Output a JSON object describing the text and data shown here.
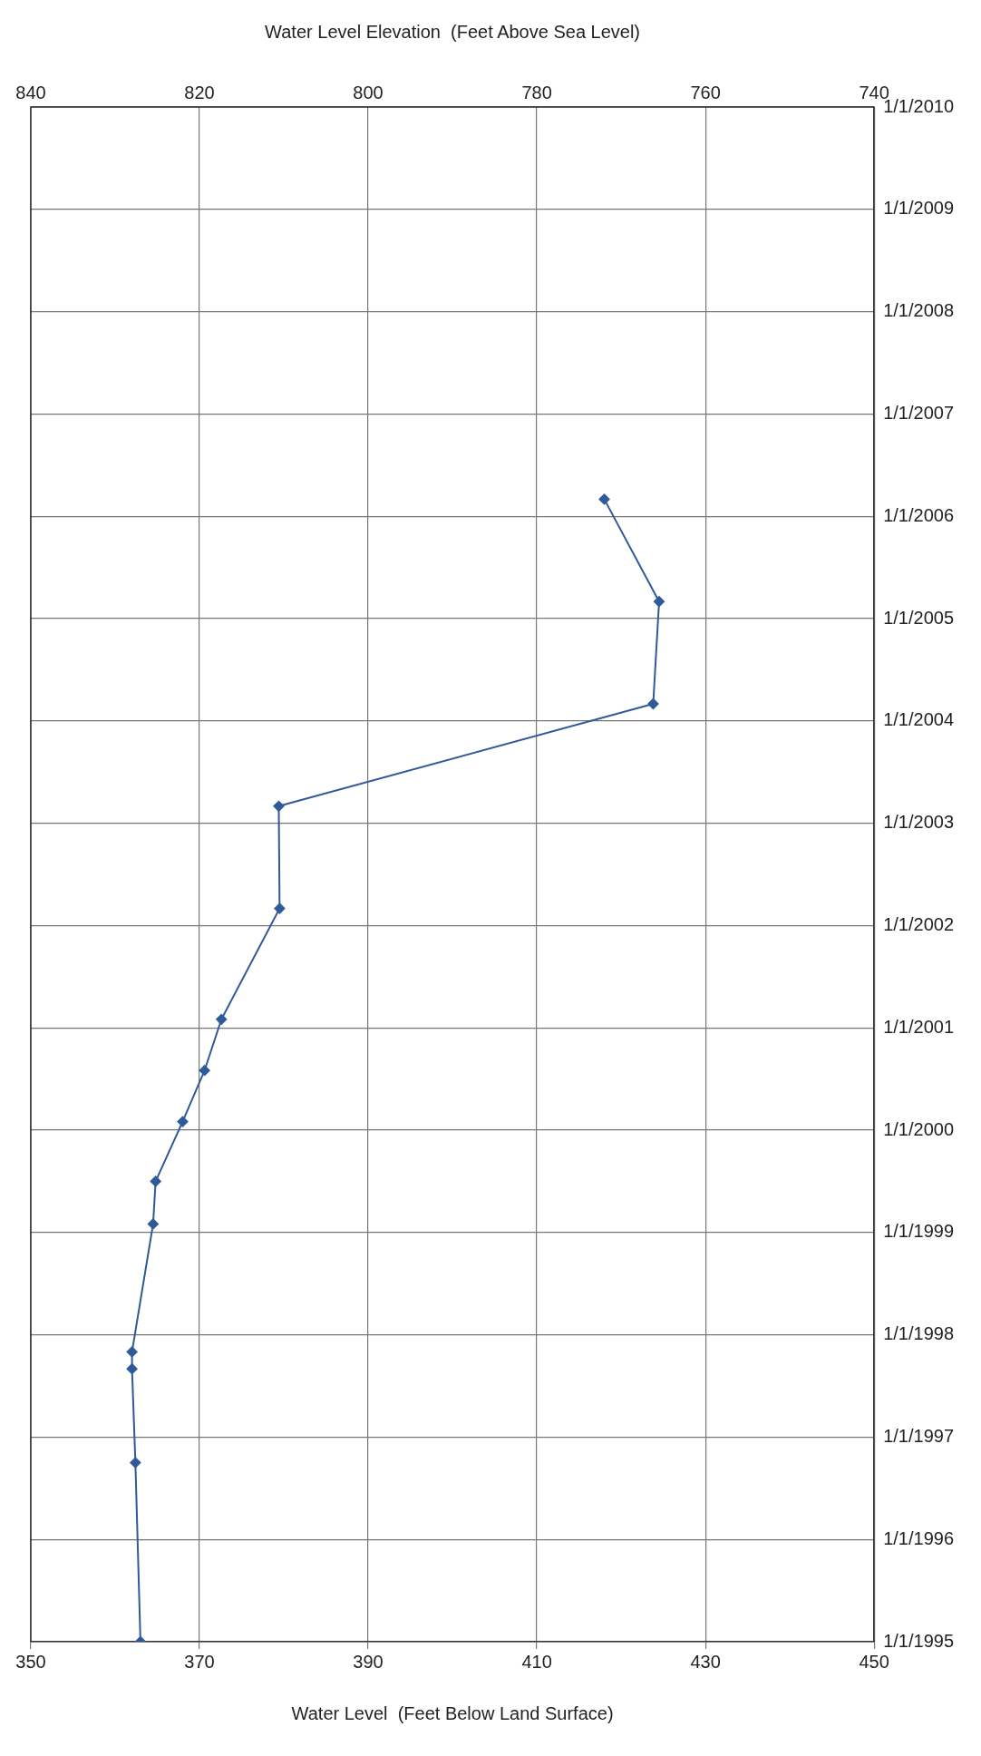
{
  "chart_data": {
    "type": "line",
    "orientation": "horizontal",
    "xlabel": "Water Level  (Feet Below Land Surface)",
    "x2label": "Water Level Elevation  (Feet Above Sea Level)",
    "x": [
      "1995-01",
      "1996-10",
      "1997-09",
      "1997-11",
      "1999-02",
      "1999-07",
      "2000-02",
      "2000-08",
      "2001-02",
      "2002-03",
      "2003-03",
      "2004-03",
      "2005-03",
      "2006-03"
    ],
    "series": [
      {
        "color": "#2f5a9a",
        "values": [
          363.0,
          362.4,
          362.0,
          362.0,
          364.5,
          364.8,
          368.0,
          370.6,
          372.6,
          379.5,
          379.4,
          423.8,
          424.5,
          418.0
        ]
      }
    ],
    "xlim": [
      350,
      450
    ],
    "xticks": [
      350,
      370,
      390,
      410,
      430,
      450
    ],
    "x2lim": [
      840,
      740
    ],
    "x2ticks": [
      840,
      820,
      800,
      780,
      760,
      740
    ],
    "ylim": [
      "1995-01-01",
      "2010-01-01"
    ],
    "yticks": [
      {
        "value": "1995-01-01",
        "label": "1/1/1995"
      },
      {
        "value": "1996-01-01",
        "label": "1/1/1996"
      },
      {
        "value": "1997-01-01",
        "label": "1/1/1997"
      },
      {
        "value": "1998-01-01",
        "label": "1/1/1998"
      },
      {
        "value": "1999-01-01",
        "label": "1/1/1999"
      },
      {
        "value": "2000-01-01",
        "label": "1/1/2000"
      },
      {
        "value": "2001-01-01",
        "label": "1/1/2001"
      },
      {
        "value": "2002-01-01",
        "label": "1/1/2002"
      },
      {
        "value": "2003-01-01",
        "label": "1/1/2003"
      },
      {
        "value": "2004-01-01",
        "label": "1/1/2004"
      },
      {
        "value": "2005-01-01",
        "label": "1/1/2005"
      },
      {
        "value": "2006-01-01",
        "label": "1/1/2006"
      },
      {
        "value": "2007-01-01",
        "label": "1/1/2007"
      },
      {
        "value": "2008-01-01",
        "label": "1/1/2008"
      },
      {
        "value": "2009-01-01",
        "label": "1/1/2009"
      },
      {
        "value": "2010-01-01",
        "label": "1/1/2010"
      }
    ],
    "grid": true,
    "legend": false,
    "marker": "diamond",
    "line_style": "solid"
  }
}
